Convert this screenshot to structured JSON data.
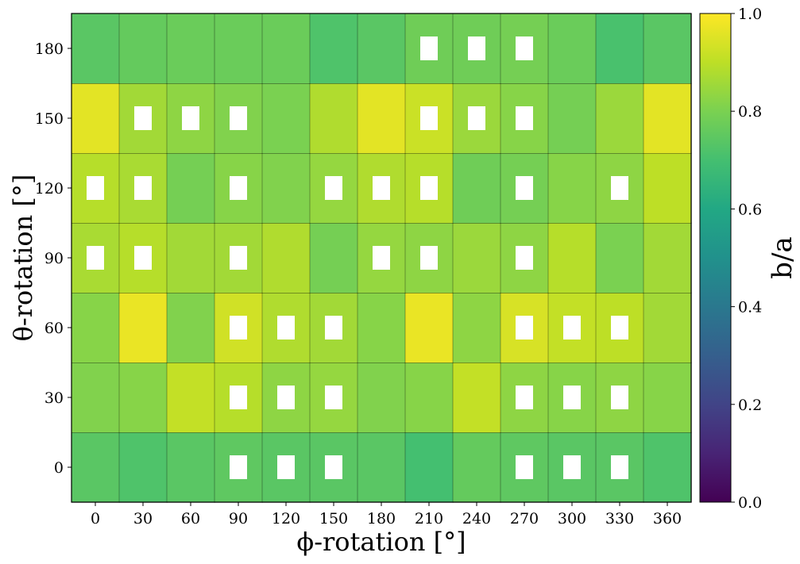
{
  "chart_data": {
    "type": "heatmap",
    "xlabel": "ϕ-rotation [°]",
    "ylabel": "θ-rotation [°]",
    "x": [
      0,
      30,
      60,
      90,
      120,
      150,
      180,
      210,
      240,
      270,
      300,
      330,
      360
    ],
    "y": [
      0,
      30,
      60,
      90,
      120,
      150,
      180
    ],
    "values": [
      [
        0.74,
        0.72,
        0.74,
        0.75,
        0.74,
        0.74,
        0.74,
        0.7,
        0.76,
        0.75,
        0.74,
        0.74,
        0.72
      ],
      [
        0.81,
        0.82,
        0.91,
        0.89,
        0.83,
        0.84,
        0.81,
        0.82,
        0.91,
        0.83,
        0.82,
        0.83,
        0.82
      ],
      [
        0.82,
        0.97,
        0.81,
        0.93,
        0.88,
        0.86,
        0.82,
        0.97,
        0.83,
        0.94,
        0.91,
        0.9,
        0.86
      ],
      [
        0.87,
        0.89,
        0.86,
        0.86,
        0.88,
        0.79,
        0.84,
        0.83,
        0.85,
        0.83,
        0.89,
        0.8,
        0.86
      ],
      [
        0.89,
        0.87,
        0.79,
        0.82,
        0.81,
        0.84,
        0.88,
        0.89,
        0.78,
        0.79,
        0.82,
        0.83,
        0.9
      ],
      [
        0.96,
        0.86,
        0.83,
        0.81,
        0.8,
        0.88,
        0.96,
        0.92,
        0.85,
        0.82,
        0.79,
        0.85,
        0.96
      ],
      [
        0.74,
        0.76,
        0.77,
        0.77,
        0.77,
        0.72,
        0.74,
        0.78,
        0.78,
        0.79,
        0.77,
        0.71,
        0.74
      ]
    ],
    "markers": [
      [
        3,
        0
      ],
      [
        4,
        0
      ],
      [
        5,
        0
      ],
      [
        9,
        0
      ],
      [
        10,
        0
      ],
      [
        11,
        0
      ],
      [
        3,
        1
      ],
      [
        4,
        1
      ],
      [
        5,
        1
      ],
      [
        9,
        1
      ],
      [
        10,
        1
      ],
      [
        11,
        1
      ],
      [
        3,
        2
      ],
      [
        4,
        2
      ],
      [
        5,
        2
      ],
      [
        9,
        2
      ],
      [
        10,
        2
      ],
      [
        11,
        2
      ],
      [
        0,
        3
      ],
      [
        1,
        3
      ],
      [
        3,
        3
      ],
      [
        6,
        3
      ],
      [
        7,
        3
      ],
      [
        9,
        3
      ],
      [
        0,
        4
      ],
      [
        1,
        4
      ],
      [
        3,
        4
      ],
      [
        5,
        4
      ],
      [
        6,
        4
      ],
      [
        7,
        4
      ],
      [
        9,
        4
      ],
      [
        11,
        4
      ],
      [
        1,
        5
      ],
      [
        2,
        5
      ],
      [
        3,
        5
      ],
      [
        7,
        5
      ],
      [
        8,
        5
      ],
      [
        9,
        5
      ],
      [
        7,
        6
      ],
      [
        8,
        6
      ],
      [
        9,
        6
      ]
    ],
    "marker_color": "#ffffff",
    "colormap": "viridis",
    "colorbar": {
      "label": "b/a",
      "range": [
        0,
        1
      ],
      "ticks": [
        "0.0",
        "0.2",
        "0.4",
        "0.6",
        "0.8",
        "1.0"
      ]
    },
    "grid": false
  }
}
